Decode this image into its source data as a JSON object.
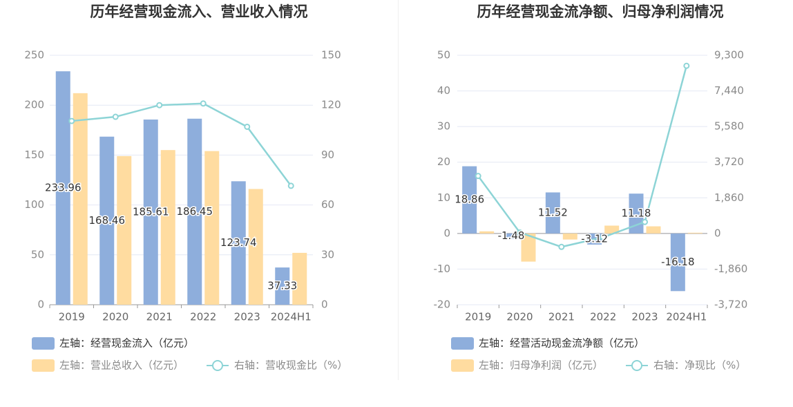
{
  "colors": {
    "bar_primary": "#8eaedc",
    "bar_secondary": "#ffdca0",
    "line": "#8dd4d6",
    "grid": "#e4e8f4",
    "axis": "#999999"
  },
  "chart_data": [
    {
      "type": "bar",
      "title": "历年经营现金流入、营业收入情况",
      "categories": [
        "2019",
        "2020",
        "2021",
        "2022",
        "2023",
        "2024H1"
      ],
      "left_axis": {
        "ticks": [
          "0",
          "50",
          "100",
          "150",
          "200",
          "250"
        ],
        "range": [
          0,
          250
        ]
      },
      "right_axis": {
        "ticks": [
          "0",
          "30",
          "60",
          "90",
          "120",
          "150"
        ],
        "range": [
          0,
          150
        ]
      },
      "series": [
        {
          "name": "左轴：经营现金流入（亿元）",
          "axis": "left",
          "kind": "bar",
          "color": "#8eaedc",
          "values": [
            233.96,
            168.46,
            185.61,
            186.45,
            123.74,
            37.33
          ],
          "labels": [
            "233.96",
            "168.46",
            "185.61",
            "186.45",
            "123.74",
            "37.33"
          ]
        },
        {
          "name": "左轴：营业总收入（亿元）",
          "axis": "left",
          "kind": "bar",
          "color": "#ffdca0",
          "values": [
            212,
            149,
            155,
            154,
            116,
            52
          ]
        },
        {
          "name": "右轴：营收现金比（%）",
          "axis": "right",
          "kind": "line",
          "color": "#8dd4d6",
          "values": [
            110.5,
            113,
            120,
            121,
            107,
            71.5
          ]
        }
      ],
      "legend_position": "bottom-left"
    },
    {
      "type": "bar",
      "title": "历年经营现金流净额、归母净利润情况",
      "categories": [
        "2019",
        "2020",
        "2021",
        "2022",
        "2023",
        "2024H1"
      ],
      "left_axis": {
        "ticks": [
          "-20",
          "-10",
          "0",
          "10",
          "20",
          "30",
          "40",
          "50"
        ],
        "range": [
          -20,
          50
        ]
      },
      "right_axis": {
        "ticks": [
          "-3,720",
          "-1,860",
          "0",
          "1,860",
          "3,720",
          "5,580",
          "7,440",
          "9,300"
        ],
        "range": [
          -3720,
          9300
        ]
      },
      "series": [
        {
          "name": "左轴：经营活动现金流净额（亿元）",
          "axis": "left",
          "kind": "bar",
          "color": "#8eaedc",
          "values": [
            18.86,
            -1.48,
            11.52,
            -3.12,
            11.18,
            -16.18
          ],
          "labels": [
            "18.86",
            "-1.48",
            "11.52",
            "-3.12",
            "11.18",
            "-16.18"
          ]
        },
        {
          "name": "左轴：归母净利润（亿元）",
          "axis": "left",
          "kind": "bar",
          "color": "#ffdca0",
          "values": [
            0.6,
            -7.9,
            -1.7,
            2.2,
            2.0,
            0.2
          ]
        },
        {
          "name": "右轴：净现比（%）",
          "axis": "right",
          "kind": "line",
          "color": "#8dd4d6",
          "values": [
            3000,
            50,
            -700,
            -200,
            600,
            8750
          ]
        }
      ],
      "legend_position": "bottom-left"
    }
  ]
}
